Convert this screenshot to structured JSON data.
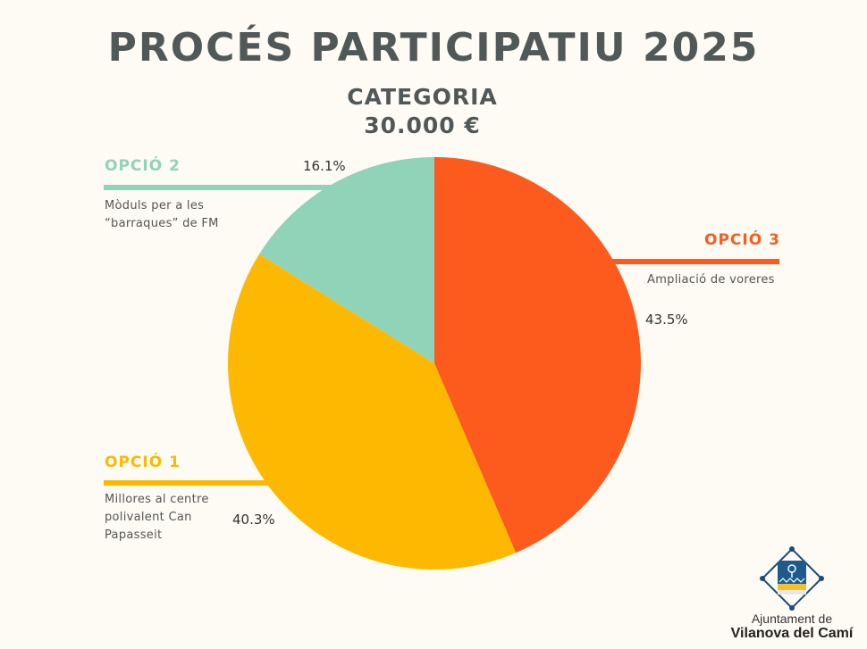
{
  "header": {
    "title": "PROCÉS PARTICIPATIU 2025",
    "category": "CATEGORIA",
    "amount": "30.000 €"
  },
  "chart_data": {
    "type": "pie",
    "categories": [
      "OPCIÓ 3",
      "OPCIÓ 1",
      "OPCIÓ 2"
    ],
    "values": [
      43.5,
      40.3,
      16.1
    ],
    "value_labels": [
      "43.5%",
      "40.3%",
      "16.1%"
    ],
    "descriptions": [
      "Ampliació de voreres",
      "Millores al centre polivalent Can Papasseit",
      "Mòduls per a les “barraques” de FM"
    ],
    "colors": [
      "#fd5a1e",
      "#fdb902",
      "#8fd3b8"
    ],
    "start": "12 o'clock, clockwise"
  },
  "options": {
    "opcio3": {
      "title": "OPCIÓ 3",
      "desc": [
        "Ampliació de voreres"
      ],
      "pct": "43.5%",
      "color": "#fd5a1e"
    },
    "opcio1": {
      "title": "OPCIÓ 1",
      "desc": [
        "Millores al centre",
        "polivalent Can",
        "Papasseit"
      ],
      "pct": "40.3%",
      "color": "#fdb902"
    },
    "opcio2": {
      "title": "OPCIÓ 2",
      "desc": [
        "Mòduls per a les",
        "“barraques” de FM"
      ],
      "pct": "16.1%",
      "color": "#8fd3b8"
    }
  },
  "logo": {
    "line1": "Ajuntament de",
    "line2": "Vilanova del Camí"
  }
}
